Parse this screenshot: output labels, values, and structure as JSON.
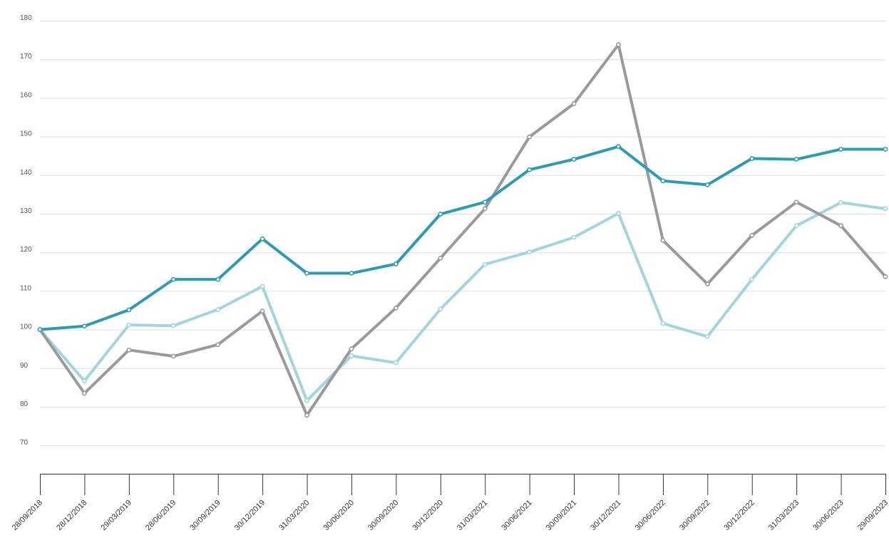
{
  "chart_data": {
    "type": "line",
    "title": "",
    "xlabel": "",
    "ylabel": "",
    "ylim": [
      65,
      180
    ],
    "y_ticks": [
      "180",
      "170",
      "160",
      "150",
      "140",
      "130",
      "120",
      "110",
      "100",
      "90",
      "80",
      "70"
    ],
    "y_tick_values": [
      180,
      170,
      160,
      150,
      140,
      130,
      120,
      110,
      100,
      90,
      80,
      70
    ],
    "grid": true,
    "legend": "none",
    "categories": [
      "28/09/2018",
      "28/12/2018",
      "29/03/2019",
      "28/06/2019",
      "30/09/2019",
      "30/12/2019",
      "31/03/2020",
      "30/06/2020",
      "30/09/2020",
      "30/12/2020",
      "31/03/2021",
      "30/06/2021",
      "30/09/2021",
      "30/12/2021",
      "30/06/2022",
      "30/09/2022",
      "30/12/2022",
      "31/03/2023",
      "30/06/2023",
      "29/09/2023"
    ],
    "series": [
      {
        "color": "#a2d5dd",
        "values": [
          100,
          86.7,
          101.2,
          101,
          105.2,
          111.2,
          81.6,
          93.2,
          91.4,
          105.3,
          116.9,
          120.1,
          123.9,
          130.1,
          101.6,
          98.2,
          113,
          126.9,
          132.9,
          131.3
        ]
      },
      {
        "color": "#9a9a9a",
        "values": [
          100,
          83.5,
          94.7,
          93.1,
          96.1,
          104.8,
          77.8,
          95,
          105.6,
          118.5,
          131.3,
          149.9,
          158.5,
          173.8,
          123.1,
          111.8,
          124.4,
          133,
          126.9,
          113.7
        ]
      },
      {
        "color": "#2e9bb0",
        "values": [
          100,
          100.9,
          105.1,
          113,
          113,
          123.5,
          114.6,
          114.6,
          117,
          129.9,
          133,
          141.4,
          144.1,
          147.4,
          138.5,
          137.5,
          144.3,
          144.1,
          146.7,
          146.7
        ]
      }
    ]
  }
}
